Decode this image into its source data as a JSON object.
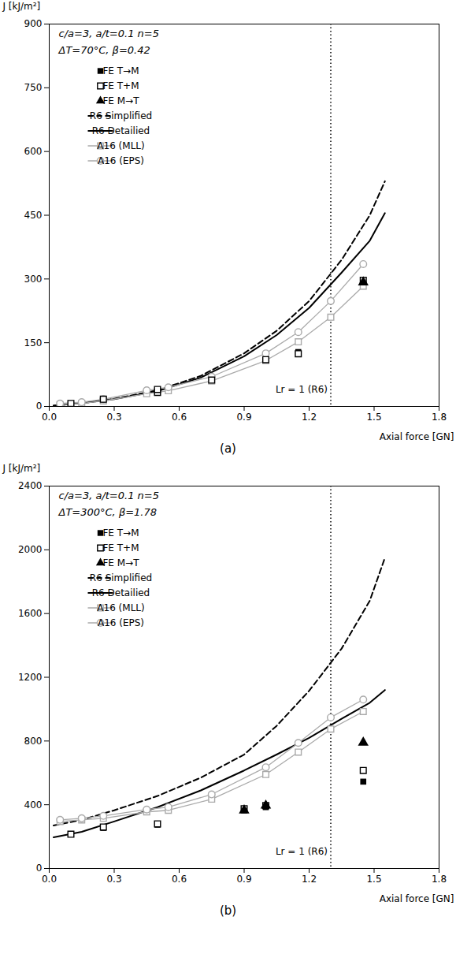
{
  "chart_data": [
    {
      "type": "line",
      "xlabel": "Axial force [GN]",
      "ylabel": "J [kJ/m²]",
      "annotations": [
        "c/a=3, a/t=0.1 n=5",
        "ΔT=70°C, β=0.42"
      ],
      "caption": "(a)",
      "xlim": [
        0.0,
        1.8
      ],
      "xticks": [
        {
          "value": 0.0,
          "label": "0.0"
        },
        0.3,
        0.6,
        0.9,
        1.2,
        1.5,
        1.8
      ],
      "ylim": [
        0,
        900
      ],
      "yticks": [
        0,
        150,
        300,
        450,
        600,
        750,
        900
      ],
      "grid": false,
      "legend": "upper left",
      "reference_lines": [
        {
          "x": 1.3,
          "label": "Lr = 1 (R6)",
          "line_style": "dotted"
        }
      ],
      "series": [
        {
          "name": "FE T→M",
          "type": "scatter",
          "marker": "square",
          "color": "#000000",
          "x": [
            0.1,
            0.25,
            0.5,
            0.75,
            1.0,
            1.15,
            1.45
          ],
          "values": [
            7,
            17,
            33,
            62,
            110,
            128,
            292
          ]
        },
        {
          "name": "FE T+M",
          "type": "scatter",
          "marker": "open-square",
          "color": "#000000",
          "x": [
            0.1,
            0.25,
            0.5,
            0.5,
            0.75,
            1.0,
            1.15,
            1.45
          ],
          "values": [
            7,
            17,
            33,
            40,
            62,
            110,
            124,
            297
          ]
        },
        {
          "name": "FE M→T",
          "type": "scatter",
          "marker": "triangle",
          "color": "#000000",
          "x": [
            1.45
          ],
          "values": [
            292
          ]
        },
        {
          "name": "R6 Simplified",
          "type": "line",
          "line_style": "dashed",
          "color": "#000000",
          "x": [
            0.02,
            0.15,
            0.3,
            0.5,
            0.7,
            0.9,
            1.05,
            1.2,
            1.35,
            1.48,
            1.55
          ],
          "values": [
            2,
            8,
            18,
            38,
            72,
            125,
            178,
            248,
            345,
            450,
            530
          ]
        },
        {
          "name": "R6 Detailied",
          "type": "line",
          "line_style": "solid",
          "color": "#000000",
          "x": [
            0.02,
            0.15,
            0.3,
            0.5,
            0.7,
            0.9,
            1.05,
            1.2,
            1.35,
            1.48,
            1.55
          ],
          "values": [
            2,
            8,
            17,
            36,
            68,
            118,
            168,
            232,
            315,
            390,
            455
          ]
        },
        {
          "name": "A16 (MLL)",
          "type": "line",
          "line_style": "solid",
          "marker": "open-square",
          "color": "#aaaaaa",
          "x": [
            0.05,
            0.15,
            0.25,
            0.45,
            0.55,
            0.75,
            1.0,
            1.15,
            1.3,
            1.45
          ],
          "values": [
            4,
            7,
            13,
            30,
            37,
            60,
            108,
            152,
            210,
            283
          ]
        },
        {
          "name": "A16 (EPS)",
          "type": "line",
          "line_style": "solid",
          "marker": "open-circle",
          "color": "#aaaaaa",
          "x": [
            0.05,
            0.15,
            0.25,
            0.45,
            0.55,
            0.75,
            1.0,
            1.15,
            1.3,
            1.45
          ],
          "values": [
            7,
            10,
            17,
            38,
            45,
            70,
            125,
            175,
            248,
            335
          ]
        }
      ]
    },
    {
      "type": "line",
      "xlabel": "Axial force [GN]",
      "ylabel": "J [kJ/m²]",
      "annotations": [
        "c/a=3, a/t=0.1 n=5",
        "ΔT=300°C, β=1.78"
      ],
      "caption": "(b)",
      "xlim": [
        0.0,
        1.8
      ],
      "xticks": [
        {
          "value": 0.0,
          "label": "0.0"
        },
        0.3,
        0.6,
        0.9,
        1.2,
        1.5,
        1.8
      ],
      "ylim": [
        0,
        2400
      ],
      "yticks": [
        0,
        400,
        800,
        1200,
        1600,
        2000,
        2400
      ],
      "grid": false,
      "legend": "upper left",
      "reference_lines": [
        {
          "x": 1.3,
          "label": "Lr = 1 (R6)",
          "line_style": "dotted"
        }
      ],
      "series": [
        {
          "name": "FE T→M",
          "type": "scatter",
          "marker": "square",
          "color": "#000000",
          "x": [
            0.1,
            0.25,
            0.5,
            0.9,
            1.0,
            1.45
          ],
          "values": [
            215,
            255,
            275,
            365,
            385,
            545
          ]
        },
        {
          "name": "FE T+M",
          "type": "scatter",
          "marker": "open-square",
          "color": "#000000",
          "x": [
            0.1,
            0.25,
            0.5,
            0.9,
            1.0,
            1.45
          ],
          "values": [
            215,
            260,
            280,
            375,
            395,
            615
          ]
        },
        {
          "name": "FE M→T",
          "type": "scatter",
          "marker": "triangle",
          "color": "#000000",
          "x": [
            0.9,
            1.0,
            1.45
          ],
          "values": [
            365,
            395,
            790
          ]
        },
        {
          "name": "R6 Simplified",
          "type": "line",
          "line_style": "dashed",
          "color": "#000000",
          "x": [
            0.02,
            0.15,
            0.3,
            0.5,
            0.7,
            0.9,
            1.05,
            1.2,
            1.35,
            1.48,
            1.55
          ],
          "values": [
            270,
            305,
            365,
            455,
            570,
            715,
            895,
            1115,
            1380,
            1680,
            1950
          ]
        },
        {
          "name": "R6 Detailied",
          "type": "line",
          "line_style": "solid",
          "color": "#000000",
          "x": [
            0.02,
            0.15,
            0.3,
            0.5,
            0.7,
            0.9,
            1.05,
            1.2,
            1.35,
            1.48,
            1.55
          ],
          "values": [
            195,
            230,
            295,
            385,
            490,
            615,
            715,
            820,
            940,
            1040,
            1120
          ]
        },
        {
          "name": "A16 (MLL)",
          "type": "line",
          "line_style": "solid",
          "marker": "open-square",
          "color": "#aaaaaa",
          "x": [
            0.05,
            0.15,
            0.25,
            0.45,
            0.55,
            0.75,
            1.0,
            1.15,
            1.3,
            1.45
          ],
          "values": [
            295,
            305,
            315,
            355,
            365,
            435,
            590,
            730,
            875,
            985
          ]
        },
        {
          "name": "A16 (EPS)",
          "type": "line",
          "line_style": "solid",
          "marker": "open-circle",
          "color": "#aaaaaa",
          "x": [
            0.05,
            0.15,
            0.25,
            0.45,
            0.55,
            0.75,
            1.0,
            1.15,
            1.3,
            1.45
          ],
          "values": [
            305,
            315,
            330,
            370,
            385,
            465,
            635,
            788,
            948,
            1060
          ]
        }
      ]
    }
  ]
}
